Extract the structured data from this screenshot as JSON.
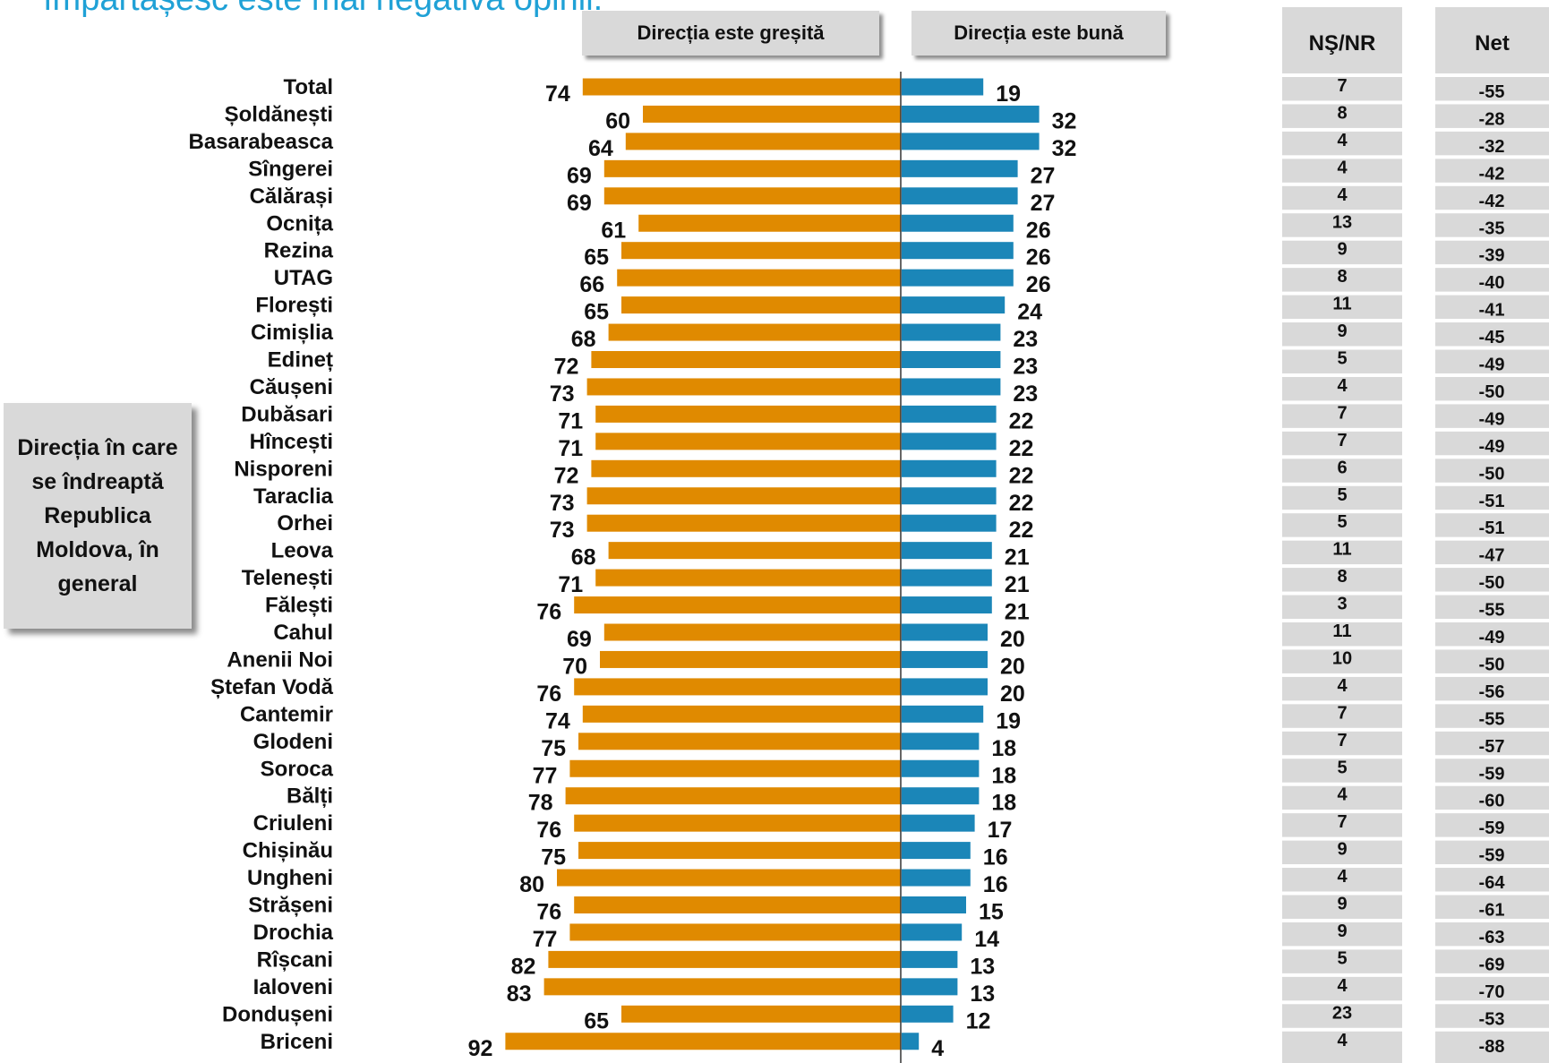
{
  "title": "împărtășesc este mai negativă opinii.",
  "headers": {
    "wrong": "Direcția este greșită",
    "good": "Direcția este bună",
    "dk": "NŞ/NR",
    "net": "Net"
  },
  "side_label": "Direcția în care se îndreaptă Republica Moldova, în general",
  "colors": {
    "wrong": "#e08a00",
    "good": "#1b86b8",
    "panel": "#d9d9d9",
    "title": "#1fa1d6"
  },
  "chart_data": {
    "type": "bar",
    "orientation": "horizontal-diverging",
    "categories": [
      "Total",
      "Șoldănești",
      "Basarabeasca",
      "Sîngerei",
      "Călărași",
      "Ocnița",
      "Rezina",
      "UTAG",
      "Florești",
      "Cimișlia",
      "Edineț",
      "Căușeni",
      "Dubăsari",
      "Hîncești",
      "Nisporeni",
      "Taraclia",
      "Orhei",
      "Leova",
      "Telenești",
      "Fălești",
      "Cahul",
      "Anenii Noi",
      "Ștefan Vodă",
      "Cantemir",
      "Glodeni",
      "Soroca",
      "Bălți",
      "Criuleni",
      "Chișinău",
      "Ungheni",
      "Strășeni",
      "Drochia",
      "Rîșcani",
      "Ialoveni",
      "Dondușeni",
      "Briceni"
    ],
    "series": [
      {
        "name": "Direcția este greșită",
        "values": [
          74,
          60,
          64,
          69,
          69,
          61,
          65,
          66,
          65,
          68,
          72,
          73,
          71,
          71,
          72,
          73,
          73,
          68,
          71,
          76,
          69,
          70,
          76,
          74,
          75,
          77,
          78,
          76,
          75,
          80,
          76,
          77,
          82,
          83,
          65,
          92
        ]
      },
      {
        "name": "Direcția este bună",
        "values": [
          19,
          32,
          32,
          27,
          27,
          26,
          26,
          26,
          24,
          23,
          23,
          23,
          22,
          22,
          22,
          22,
          22,
          21,
          21,
          21,
          20,
          20,
          20,
          19,
          18,
          18,
          18,
          17,
          16,
          16,
          15,
          14,
          13,
          13,
          12,
          4
        ]
      }
    ],
    "columns": [
      {
        "name": "NŞ/NR",
        "values": [
          "7",
          "8",
          "4",
          "4",
          "4",
          "13",
          "9",
          "8",
          "11",
          "9",
          "5",
          "4",
          "7",
          "7",
          "6",
          "5",
          "5",
          "11",
          "8",
          "3",
          "11",
          "10",
          "4",
          "7",
          "7",
          "5",
          "4",
          "7",
          "9",
          "4",
          "9",
          "9",
          "5",
          "4",
          "23",
          "4"
        ]
      },
      {
        "name": "Net",
        "values": [
          "-55",
          "-28",
          "-32",
          "-42",
          "-42",
          "-35",
          "-39",
          "-40",
          "-41",
          "-45",
          "-49",
          "-50",
          "-49",
          "-49",
          "-50",
          "-51",
          "-51",
          "-47",
          "-50",
          "-55",
          "-49",
          "-50",
          "-56",
          "-55",
          "-57",
          "-59",
          "-60",
          "-59",
          "-59",
          "-64",
          "-61",
          "-63",
          "-69",
          "-70",
          "-53",
          "-88"
        ]
      }
    ],
    "xlim": [
      0,
      100
    ]
  }
}
